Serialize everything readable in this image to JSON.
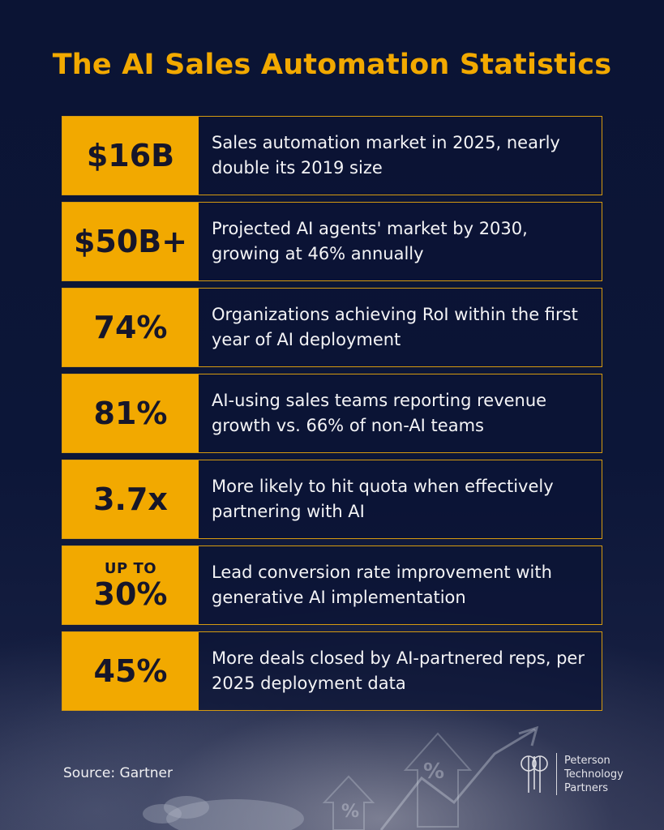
{
  "title": "The AI Sales Automation Statistics",
  "stats": [
    {
      "prefix": "",
      "value": "$16B",
      "description": "Sales automation market in 2025, nearly double its 2019 size"
    },
    {
      "prefix": "",
      "value": "$50B+",
      "description": "Projected AI agents' market by 2030, growing at 46% annually"
    },
    {
      "prefix": "",
      "value": "74%",
      "description": "Organizations achieving RoI within the first year of AI deployment"
    },
    {
      "prefix": "",
      "value": "81%",
      "description": "AI-using sales teams reporting revenue growth vs. 66% of non-AI teams"
    },
    {
      "prefix": "",
      "value": "3.7x",
      "description": "More likely to hit quota when effectively partnering with AI"
    },
    {
      "prefix": "UP TO",
      "value": "30%",
      "description": "Lead conversion rate improvement with generative AI implementation"
    },
    {
      "prefix": "",
      "value": "45%",
      "description": "More deals closed by AI-partnered reps, per 2025 deployment data"
    }
  ],
  "source": "Source: Gartner",
  "brand": {
    "line1": "Peterson",
    "line2": "Technology",
    "line3": "Partners",
    "logo_icon": "peterson-monogram-icon"
  },
  "colors": {
    "background": "#0b1434",
    "accent": "#f2a900",
    "value_text": "#16162a",
    "text": "#f4f4f6"
  }
}
